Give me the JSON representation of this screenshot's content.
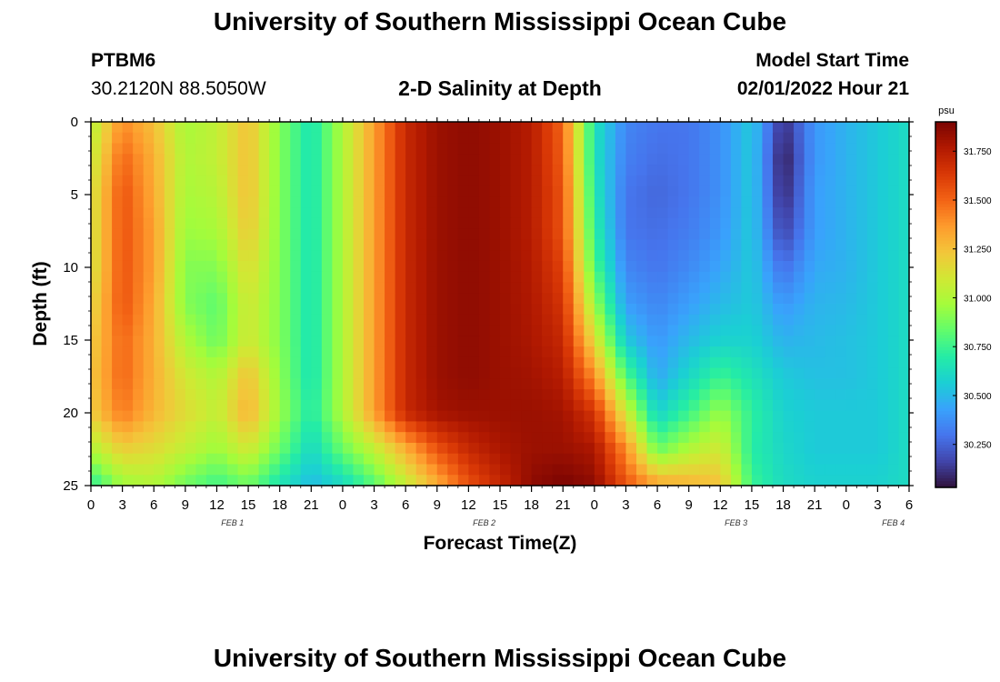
{
  "page": {
    "title": "University of Southern Mississippi Ocean Cube",
    "station": "PTBM6",
    "coords": "30.2120N  88.5050W",
    "subtitle": "2-D Salinity at Depth",
    "model_start_label": "Model Start Time",
    "model_start_value": "02/01/2022 Hour 21",
    "footer_title": "University of Southern Mississippi Ocean Cube"
  },
  "colors": {
    "colormap": [
      "#30123b",
      "#4145ab",
      "#4675ed",
      "#39a2fc",
      "#1bcfd4",
      "#24eca6",
      "#61fc6c",
      "#a4fc3b",
      "#d1e834",
      "#f3c63a",
      "#fe9b2d",
      "#f36315",
      "#d93806",
      "#b11901",
      "#7a0402"
    ]
  },
  "chart_data": {
    "type": "heatmap",
    "title": "2-D Salinity at Depth",
    "xlabel": "Forecast Time(Z)",
    "ylabel": "Depth (ft)",
    "x_tick_labels": [
      "0",
      "3",
      "6",
      "9",
      "12",
      "15",
      "18",
      "21",
      "0",
      "3",
      "6",
      "9",
      "12",
      "15",
      "18",
      "21",
      "0",
      "3",
      "6",
      "9",
      "12",
      "15",
      "18",
      "21",
      "0",
      "3",
      "6"
    ],
    "x_date_labels": [
      {
        "label": "FEB 1",
        "tick_index": 4.5
      },
      {
        "label": "FEB 2",
        "tick_index": 12.5
      },
      {
        "label": "FEB 3",
        "tick_index": 20.5
      },
      {
        "label": "FEB 4",
        "tick_index": 25.5
      }
    ],
    "y_tick_labels": [
      "0",
      "5",
      "10",
      "15",
      "20",
      "25"
    ],
    "ylim": [
      0,
      25
    ],
    "y_inverted": true,
    "colorbar": {
      "unit": "psu",
      "range": [
        30.03,
        31.9
      ],
      "ticks": [
        31.75,
        31.5,
        31.25,
        31.0,
        30.75,
        30.5,
        30.25
      ],
      "tick_labels": [
        "31.750",
        "31.500",
        "31.250",
        "31.000",
        "30.750",
        "30.500",
        "30.250"
      ]
    },
    "time_hours": [
      0,
      3,
      6,
      9,
      12,
      15,
      18,
      21,
      24,
      27,
      30,
      33,
      36,
      39,
      42,
      45,
      48,
      51,
      54,
      57,
      60,
      63,
      66,
      69,
      72,
      75,
      78
    ],
    "depths_ft": [
      0,
      2.5,
      5,
      7.5,
      10,
      12.5,
      15,
      17.5,
      20,
      22.5,
      25
    ],
    "values": [
      [
        31.0,
        31.4,
        31.25,
        30.98,
        31.05,
        31.25,
        30.9,
        30.65,
        31.0,
        31.35,
        31.7,
        31.82,
        31.85,
        31.82,
        31.75,
        31.5,
        30.65,
        30.35,
        30.3,
        30.3,
        30.38,
        30.55,
        30.1,
        30.4,
        30.48,
        30.55,
        30.62
      ],
      [
        31.05,
        31.5,
        31.3,
        31.0,
        31.05,
        31.25,
        30.9,
        30.65,
        31.0,
        31.35,
        31.7,
        31.82,
        31.85,
        31.82,
        31.75,
        31.52,
        30.65,
        30.33,
        30.28,
        30.3,
        30.38,
        30.55,
        30.05,
        30.4,
        30.48,
        30.55,
        30.62
      ],
      [
        31.1,
        31.55,
        31.32,
        30.98,
        31.02,
        31.25,
        30.9,
        30.65,
        31.0,
        31.35,
        31.7,
        31.82,
        31.85,
        31.82,
        31.75,
        31.55,
        30.68,
        30.3,
        30.26,
        30.3,
        30.38,
        30.55,
        30.08,
        30.42,
        30.48,
        30.55,
        30.62
      ],
      [
        31.1,
        31.55,
        31.35,
        30.95,
        30.98,
        31.22,
        30.9,
        30.65,
        31.0,
        31.35,
        31.7,
        31.82,
        31.85,
        31.82,
        31.75,
        31.55,
        30.72,
        30.3,
        30.28,
        30.32,
        30.4,
        30.55,
        30.15,
        30.42,
        30.48,
        30.55,
        30.62
      ],
      [
        31.1,
        31.55,
        31.35,
        30.9,
        30.9,
        31.15,
        30.9,
        30.65,
        31.0,
        31.35,
        31.7,
        31.82,
        31.85,
        31.82,
        31.76,
        31.6,
        30.8,
        30.35,
        30.3,
        30.36,
        30.44,
        30.55,
        30.28,
        30.45,
        30.48,
        30.55,
        30.62
      ],
      [
        31.15,
        31.55,
        31.32,
        30.9,
        30.82,
        31.1,
        30.9,
        30.65,
        31.0,
        31.35,
        31.7,
        31.82,
        31.85,
        31.82,
        31.77,
        31.65,
        30.95,
        30.42,
        30.35,
        30.42,
        30.5,
        30.55,
        30.4,
        30.48,
        30.5,
        30.55,
        30.62
      ],
      [
        31.2,
        31.5,
        31.3,
        31.0,
        30.85,
        31.1,
        30.9,
        30.65,
        31.0,
        31.35,
        31.7,
        31.82,
        31.85,
        31.82,
        31.78,
        31.7,
        31.15,
        30.55,
        30.4,
        30.5,
        30.58,
        30.58,
        30.48,
        30.5,
        30.52,
        30.55,
        30.62
      ],
      [
        31.22,
        31.5,
        31.3,
        31.1,
        31.0,
        31.25,
        30.92,
        30.65,
        31.0,
        31.35,
        31.7,
        31.82,
        31.85,
        31.82,
        31.8,
        31.75,
        31.4,
        30.8,
        30.45,
        30.6,
        30.75,
        30.65,
        30.55,
        30.52,
        30.52,
        30.55,
        30.62
      ],
      [
        31.2,
        31.45,
        31.28,
        31.15,
        31.05,
        31.3,
        30.95,
        30.68,
        31.0,
        31.35,
        31.7,
        31.8,
        31.82,
        31.82,
        31.82,
        31.8,
        31.65,
        31.1,
        30.58,
        30.75,
        30.95,
        30.72,
        30.58,
        30.55,
        30.55,
        30.55,
        30.62
      ],
      [
        31.0,
        31.2,
        31.15,
        31.05,
        30.95,
        31.1,
        30.85,
        30.6,
        30.85,
        31.05,
        31.3,
        31.55,
        31.7,
        31.78,
        31.82,
        31.82,
        31.78,
        31.4,
        30.85,
        31.0,
        31.1,
        30.7,
        30.6,
        30.55,
        30.55,
        30.55,
        30.62
      ],
      [
        30.7,
        30.95,
        31.0,
        30.85,
        30.75,
        30.85,
        30.65,
        30.5,
        30.6,
        30.8,
        31.05,
        31.3,
        31.55,
        31.7,
        31.85,
        31.9,
        31.85,
        31.55,
        31.35,
        31.3,
        31.25,
        30.75,
        30.62,
        30.58,
        30.58,
        30.58,
        30.62
      ]
    ]
  }
}
